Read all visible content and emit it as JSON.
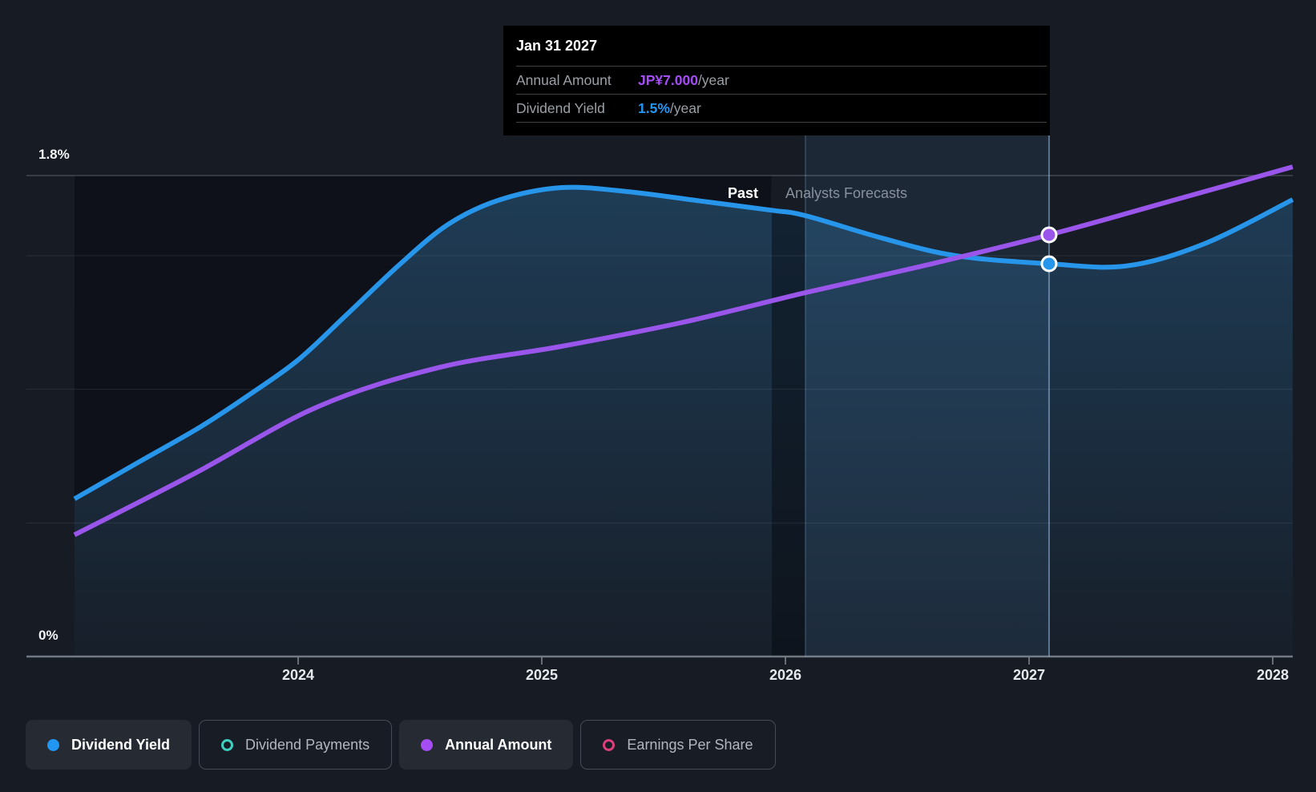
{
  "tooltip": {
    "date": "Jan 31 2027",
    "rows": [
      {
        "label": "Annual Amount",
        "value": "JP¥7.000",
        "suffix": "/year",
        "value_color": "#a44df2"
      },
      {
        "label": "Dividend Yield",
        "value": "1.5%",
        "suffix": "/year",
        "value_color": "#2196f3"
      }
    ]
  },
  "chart": {
    "past_label": "Past",
    "forecast_label": "Analysts Forecasts",
    "y_max_label": "1.8%",
    "y_min_label": "0%",
    "x_tick_labels": [
      "2024",
      "2025",
      "2026",
      "2027",
      "2028"
    ]
  },
  "legend": [
    {
      "label": "Dividend Yield",
      "color": "#2196f3",
      "marker": "filled-dot-icon",
      "active": true
    },
    {
      "label": "Dividend Payments",
      "color": "#3ecfc0",
      "marker": "ring-icon",
      "active": false
    },
    {
      "label": "Annual Amount",
      "color": "#a44df2",
      "marker": "filled-dot-icon",
      "active": true
    },
    {
      "label": "Earnings Per Share",
      "color": "#dd3f7d",
      "marker": "ring-icon",
      "active": false
    }
  ],
  "chart_data": {
    "type": "line",
    "title": "Dividend history and forecast",
    "x_domain": [
      2023.082,
      2028.082
    ],
    "x_ticks": [
      2024,
      2025,
      2026,
      2027,
      2028
    ],
    "y_axis": {
      "min": 0,
      "max": 1.8,
      "unit": "%",
      "gridlines": [
        0,
        0.5,
        1.0,
        1.5,
        1.8
      ]
    },
    "past_until": 2025.944,
    "highlight_range": [
      2026.082,
      2027.082
    ],
    "hover_point": {
      "date": "Jan 31 2027",
      "annual_amount_jpy": 7.0,
      "dividend_yield_pct": 1.5
    },
    "series": [
      {
        "name": "Dividend Yield",
        "unit": "%",
        "color": "#2795e9",
        "points": [
          [
            2023.082,
            0.59
          ],
          [
            2023.35,
            0.73
          ],
          [
            2023.6,
            0.86
          ],
          [
            2023.8,
            0.98
          ],
          [
            2024.0,
            1.11
          ],
          [
            2024.2,
            1.28
          ],
          [
            2024.42,
            1.47
          ],
          [
            2024.62,
            1.62
          ],
          [
            2024.83,
            1.71
          ],
          [
            2025.082,
            1.755
          ],
          [
            2025.35,
            1.74
          ],
          [
            2025.65,
            1.705
          ],
          [
            2025.944,
            1.67
          ],
          [
            2026.082,
            1.65
          ],
          [
            2026.4,
            1.565
          ],
          [
            2026.7,
            1.5
          ],
          [
            2027.082,
            1.47
          ],
          [
            2027.4,
            1.462
          ],
          [
            2027.72,
            1.545
          ],
          [
            2028.082,
            1.71
          ]
        ]
      },
      {
        "name": "Annual Amount",
        "unit": "JP¥/share",
        "color": "#9a55eb",
        "points": [
          [
            2023.082,
            2.02
          ],
          [
            2023.58,
            3.05
          ],
          [
            2024.082,
            4.15
          ],
          [
            2024.58,
            4.8
          ],
          [
            2025.082,
            5.15
          ],
          [
            2025.58,
            5.55
          ],
          [
            2026.082,
            6.04
          ],
          [
            2026.58,
            6.5
          ],
          [
            2027.082,
            7.0
          ],
          [
            2027.58,
            7.56
          ],
          [
            2028.082,
            8.13
          ]
        ]
      }
    ]
  }
}
